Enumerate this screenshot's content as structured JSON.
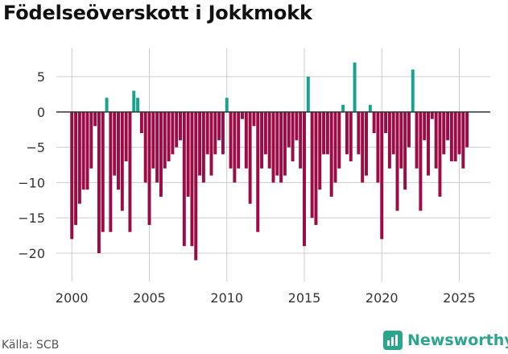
{
  "title": "Födelseöverskott i Jokkmokk",
  "source_label": "Källa: SCB",
  "brand": {
    "name": "Newsworthy",
    "color": "#2ca58d"
  },
  "colors": {
    "negative": "#9b0b45",
    "positive": "#17a38f",
    "zero_line": "#333333",
    "grid": "#cccccc"
  },
  "chart_data": {
    "type": "bar",
    "title": "Födelseöverskott i Jokkmokk",
    "xlabel": "",
    "ylabel": "",
    "granularity": "quarterly",
    "start": 2000.0,
    "step": 0.25,
    "xlim": [
      1999.0,
      2027.0
    ],
    "ylim": [
      -24,
      9
    ],
    "xticks": [
      2000,
      2005,
      2010,
      2015,
      2020,
      2025
    ],
    "yticks": [
      5,
      0,
      -5,
      -10,
      -15,
      -20
    ],
    "ytick_labels": [
      "5",
      "0",
      "−5",
      "−10",
      "−15",
      "−20"
    ],
    "values": [
      -18,
      -16,
      -13,
      -11,
      -11,
      -8,
      -2,
      -20,
      -17,
      2,
      -17,
      -9,
      -11,
      -14,
      -7,
      -17,
      3,
      2,
      -3,
      -10,
      -16,
      -8,
      -10,
      -12,
      -8,
      -7,
      -6,
      -5,
      -4,
      -19,
      -12,
      -19,
      -21,
      -9,
      -10,
      -6,
      -9,
      -6,
      -4,
      -6,
      2,
      -8,
      -10,
      -8,
      -1,
      -8,
      -13,
      -2,
      -17,
      -8,
      -6,
      -8,
      -10,
      -9,
      -10,
      -9,
      -5,
      -7,
      -4,
      -8,
      -19,
      5,
      -15,
      -16,
      -11,
      -6,
      -6,
      -12,
      -10,
      -8,
      1,
      -6,
      -7,
      7,
      -6,
      -10,
      -9,
      1,
      -3,
      -10,
      -18,
      -3,
      -8,
      -6,
      -14,
      -8,
      -11,
      -5,
      6,
      -8,
      -14,
      -4,
      -9,
      -1,
      -8,
      -12,
      -6,
      -4,
      -7,
      -7,
      -6,
      -8,
      -5
    ]
  }
}
